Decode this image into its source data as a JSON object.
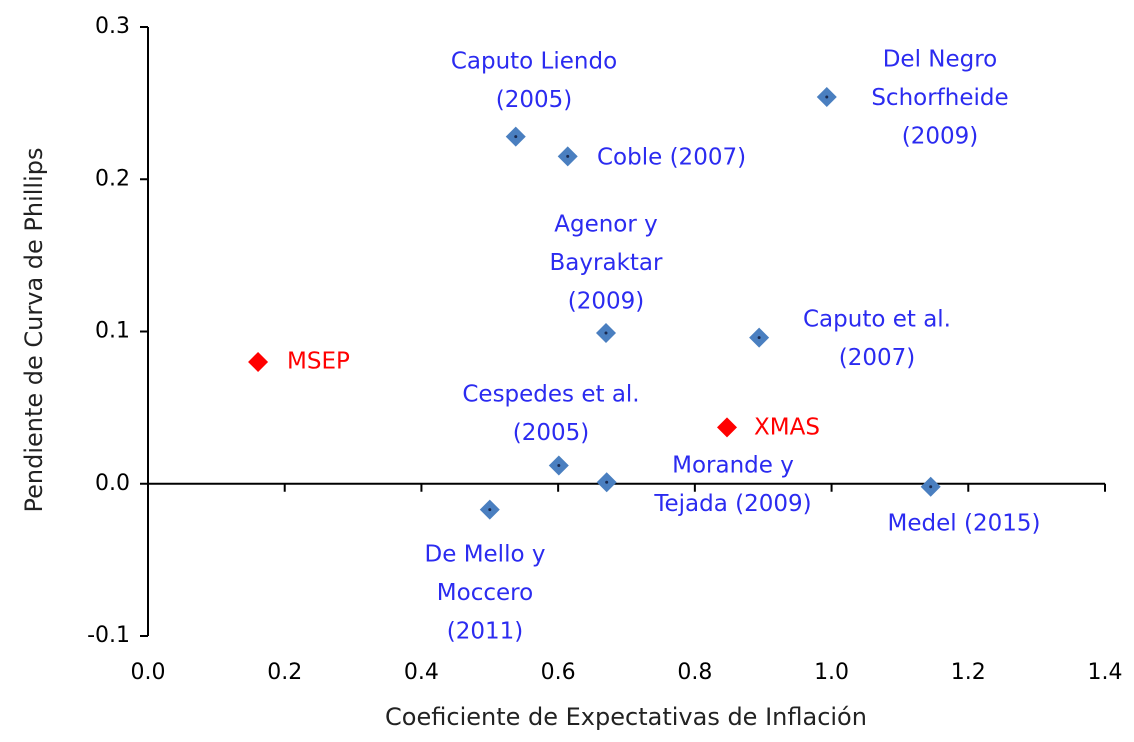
{
  "chart_data": {
    "type": "scatter",
    "x_label": "Coeficiente de Expectativas de Inflación",
    "y_label": "Pendiente de Curva de Phillips",
    "xlim": [
      0,
      1.4
    ],
    "xticks": [
      {
        "value": 0,
        "label": "0.0"
      },
      0.2,
      0.4,
      0.6,
      0.8,
      {
        "value": 1,
        "label": "1.0"
      },
      1.2,
      1.4
    ],
    "ylim": [
      -0.1,
      0.3
    ],
    "yticks": [
      -0.1,
      {
        "value": 0,
        "label": "0.0"
      },
      0.1,
      0.2,
      0.3
    ],
    "series": [
      {
        "x": [
          0.538,
          0.614,
          0.993,
          0.67,
          0.894,
          0.161,
          0.847,
          0.601,
          0.671,
          1.145,
          0.5
        ],
        "values": [
          0.228,
          0.215,
          0.254,
          0.099,
          0.096,
          0.08,
          0.037,
          0.012,
          0.001,
          -0.002,
          -0.017
        ],
        "labels": [
          [
            "Caputo Liendo",
            "(2005)"
          ],
          [
            "Coble (2007)"
          ],
          [
            "Del Negro",
            "Schorfheide",
            "(2009)"
          ],
          [
            "Agenor y",
            "Bayraktar",
            "(2009)"
          ],
          [
            "Caputo et al.",
            "(2007)"
          ],
          [
            "MSEP"
          ],
          [
            "XMAS"
          ],
          [
            "Cespedes et al.",
            "(2005)"
          ],
          [
            "Morande y",
            "Tejada (2009)"
          ],
          [
            "Medel (2015)"
          ],
          [
            "De Mello y",
            "Moccero",
            "(2011)"
          ]
        ],
        "colors": [
          "#4a7fc0",
          "#4a7fc0",
          "#4a7fc0",
          "#4a7fc0",
          "#4a7fc0",
          "#ff0000",
          "#ff0000",
          "#4a7fc0",
          "#4a7fc0",
          "#4a7fc0",
          "#4a7fc0"
        ],
        "label_colors": [
          "#2b2bf0",
          "#2b2bf0",
          "#2b2bf0",
          "#2b2bf0",
          "#2b2bf0",
          "#ff0000",
          "#ff0000",
          "#2b2bf0",
          "#2b2bf0",
          "#2b2bf0",
          "#2b2bf0"
        ]
      }
    ]
  }
}
